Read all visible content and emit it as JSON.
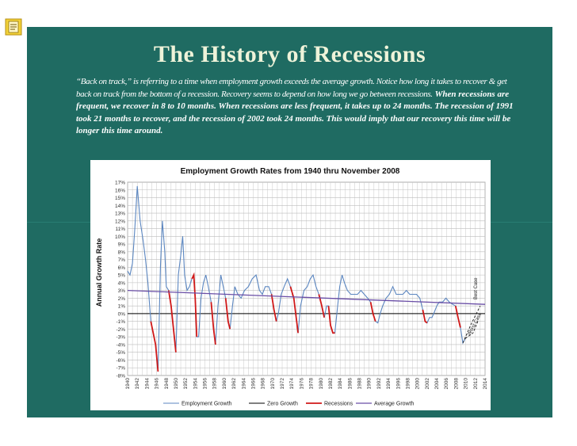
{
  "slide": {
    "title": "The History of Recessions",
    "paragraph_italic": "“Back on track,” is referring to a time when employment growth exceeds the average growth. Notice how long it takes to recover & get back on track from the bottom of a recession. Recovery seems to depend on how long we go between recessions.",
    "paragraph_bold": "When recessions are frequent, we recover in 8 to 10 months. When recessions are less frequent, it takes up to 24 months. The recession of 1991 took 21 months to recover, and the recession of 2002 took 24 months. This would imply that our recovery this time will be longer this time around."
  },
  "icons": {
    "note": "note-icon"
  },
  "chart_data": {
    "type": "line",
    "title": "Employment Growth Rates from 1940 thru November 2008",
    "xlabel": "",
    "ylabel": "Annual Growth Rate",
    "xlim": [
      1940,
      2014
    ],
    "ylim": [
      -8,
      17
    ],
    "y_ticks": [
      17,
      16,
      15,
      14,
      13,
      12,
      11,
      10,
      9,
      8,
      7,
      6,
      5,
      4,
      3,
      2,
      1,
      0,
      -1,
      -2,
      -3,
      -4,
      -5,
      -6,
      -7,
      -8
    ],
    "x_ticks": [
      1940,
      1942,
      1944,
      1946,
      1948,
      1950,
      1952,
      1954,
      1956,
      1958,
      1960,
      1962,
      1964,
      1966,
      1968,
      1970,
      1972,
      1974,
      1976,
      1978,
      1980,
      1982,
      1984,
      1986,
      1988,
      1990,
      1992,
      1994,
      1996,
      1998,
      2000,
      2002,
      2004,
      2006,
      2008,
      2010,
      2012,
      2014
    ],
    "colors": {
      "employment": "#5b86c0",
      "zero": "#000000",
      "recession": "#d01818",
      "average": "#6a4ea6",
      "forecast": "#1a1a1a"
    },
    "series": [
      {
        "name": "Employment Growth",
        "points": [
          [
            1940,
            5.5
          ],
          [
            1940.5,
            5
          ],
          [
            1941,
            6.5
          ],
          [
            1941.5,
            11
          ],
          [
            1942,
            16.5
          ],
          [
            1942.6,
            12
          ],
          [
            1943.2,
            9.5
          ],
          [
            1943.7,
            7
          ],
          [
            1944.2,
            4
          ],
          [
            1944.8,
            -1
          ],
          [
            1945.3,
            -2.5
          ],
          [
            1945.8,
            -4
          ],
          [
            1946.3,
            -7.5
          ],
          [
            1946.8,
            6
          ],
          [
            1947.2,
            12
          ],
          [
            1947.7,
            8
          ],
          [
            1948,
            3.5
          ],
          [
            1948.5,
            3
          ],
          [
            1949,
            1
          ],
          [
            1949.5,
            -2
          ],
          [
            1950,
            -5
          ],
          [
            1950.5,
            5
          ],
          [
            1951,
            7.5
          ],
          [
            1951.4,
            10
          ],
          [
            1951.8,
            5
          ],
          [
            1952.3,
            3
          ],
          [
            1952.8,
            3.5
          ],
          [
            1953.3,
            4.5
          ],
          [
            1953.7,
            5
          ],
          [
            1954,
            2
          ],
          [
            1954.3,
            -3
          ],
          [
            1954.7,
            -3
          ],
          [
            1955.2,
            2
          ],
          [
            1955.7,
            4
          ],
          [
            1956.2,
            5
          ],
          [
            1956.7,
            3.5
          ],
          [
            1957.3,
            1.5
          ],
          [
            1957.8,
            -2
          ],
          [
            1958.2,
            -4
          ],
          [
            1958.7,
            1
          ],
          [
            1959.3,
            5
          ],
          [
            1959.8,
            3.5
          ],
          [
            1960.3,
            2
          ],
          [
            1960.8,
            -1
          ],
          [
            1961.2,
            -2
          ],
          [
            1961.7,
            1
          ],
          [
            1962.2,
            3.5
          ],
          [
            1962.8,
            2.5
          ],
          [
            1963.5,
            2
          ],
          [
            1964.2,
            3
          ],
          [
            1965,
            3.5
          ],
          [
            1965.8,
            4.5
          ],
          [
            1966.6,
            5
          ],
          [
            1967.3,
            3
          ],
          [
            1967.9,
            2.5
          ],
          [
            1968.5,
            3.5
          ],
          [
            1969.2,
            3.5
          ],
          [
            1969.8,
            2.5
          ],
          [
            1970.3,
            0.5
          ],
          [
            1970.8,
            -1
          ],
          [
            1971.2,
            0
          ],
          [
            1971.8,
            2.5
          ],
          [
            1972.4,
            3.5
          ],
          [
            1973.1,
            4.5
          ],
          [
            1973.7,
            3.5
          ],
          [
            1974.4,
            2
          ],
          [
            1974.9,
            -0.5
          ],
          [
            1975.3,
            -2.5
          ],
          [
            1975.8,
            1
          ],
          [
            1976.5,
            3
          ],
          [
            1977.2,
            3.5
          ],
          [
            1977.8,
            4.5
          ],
          [
            1978.4,
            5
          ],
          [
            1979,
            3.5
          ],
          [
            1979.6,
            2.5
          ],
          [
            1980.2,
            1
          ],
          [
            1980.7,
            -0.5
          ],
          [
            1981.2,
            1
          ],
          [
            1981.6,
            1
          ],
          [
            1982,
            -1.5
          ],
          [
            1982.5,
            -2.5
          ],
          [
            1982.9,
            -2.5
          ],
          [
            1983.4,
            0.5
          ],
          [
            1983.9,
            3.5
          ],
          [
            1984.4,
            5
          ],
          [
            1984.9,
            4
          ],
          [
            1985.5,
            3
          ],
          [
            1986.2,
            2.5
          ],
          [
            1986.9,
            2.5
          ],
          [
            1987.6,
            2.5
          ],
          [
            1988.3,
            3
          ],
          [
            1989,
            2.5
          ],
          [
            1989.7,
            2
          ],
          [
            1990.3,
            1.5
          ],
          [
            1990.8,
            0
          ],
          [
            1991.3,
            -1
          ],
          [
            1991.8,
            -1.2
          ],
          [
            1992.3,
            0
          ],
          [
            1992.8,
            1
          ],
          [
            1993.5,
            2
          ],
          [
            1994.2,
            2.5
          ],
          [
            1994.9,
            3.5
          ],
          [
            1995.6,
            2.5
          ],
          [
            1996.3,
            2.5
          ],
          [
            1997,
            2.5
          ],
          [
            1997.7,
            3
          ],
          [
            1998.4,
            2.5
          ],
          [
            1999.1,
            2.5
          ],
          [
            1999.8,
            2.5
          ],
          [
            2000.5,
            2
          ],
          [
            2001.1,
            0.5
          ],
          [
            2001.6,
            -1
          ],
          [
            2002,
            -1.2
          ],
          [
            2002.5,
            -0.5
          ],
          [
            2003,
            -0.5
          ],
          [
            2003.5,
            0.2
          ],
          [
            2004,
            1
          ],
          [
            2004.5,
            1.5
          ],
          [
            2005.2,
            1.5
          ],
          [
            2005.9,
            2
          ],
          [
            2006.6,
            1.5
          ],
          [
            2007.3,
            1.2
          ],
          [
            2007.9,
            1
          ],
          [
            2008.4,
            -0.5
          ],
          [
            2008.9,
            -1.8
          ],
          [
            2009.4,
            -3.8
          ],
          [
            2009.9,
            -3.2
          ]
        ]
      },
      {
        "name": "Zero Growth",
        "value": 0
      },
      {
        "name": "Recessions",
        "segments": [
          [
            [
              1944.8,
              -1
            ],
            [
              1945.3,
              -2.5
            ],
            [
              1945.8,
              -4
            ],
            [
              1946.3,
              -7.5
            ]
          ],
          [
            [
              1948.5,
              3
            ],
            [
              1949,
              1
            ],
            [
              1949.5,
              -2
            ],
            [
              1950,
              -5
            ]
          ],
          [
            [
              1953.3,
              4.5
            ],
            [
              1953.7,
              5
            ],
            [
              1954,
              2
            ],
            [
              1954.3,
              -3
            ]
          ],
          [
            [
              1957.3,
              1.5
            ],
            [
              1957.8,
              -2
            ],
            [
              1958.2,
              -4
            ]
          ],
          [
            [
              1960.3,
              2
            ],
            [
              1960.8,
              -1
            ],
            [
              1961.2,
              -2
            ]
          ],
          [
            [
              1969.8,
              2.5
            ],
            [
              1970.3,
              0.5
            ],
            [
              1970.8,
              -1
            ]
          ],
          [
            [
              1973.7,
              3.5
            ],
            [
              1974.4,
              2
            ],
            [
              1974.9,
              -0.5
            ],
            [
              1975.3,
              -2.5
            ]
          ],
          [
            [
              1979.6,
              2.5
            ],
            [
              1980.2,
              1
            ],
            [
              1980.7,
              -0.5
            ]
          ],
          [
            [
              1981.6,
              1
            ],
            [
              1982,
              -1.5
            ],
            [
              1982.5,
              -2.5
            ],
            [
              1982.9,
              -2.5
            ]
          ],
          [
            [
              1990.3,
              1.5
            ],
            [
              1990.8,
              0
            ],
            [
              1991.3,
              -1
            ]
          ],
          [
            [
              2001.1,
              0.5
            ],
            [
              2001.6,
              -1
            ],
            [
              2002,
              -1.2
            ]
          ],
          [
            [
              2007.9,
              1
            ],
            [
              2008.4,
              -0.5
            ],
            [
              2008.9,
              -1.8
            ]
          ]
        ]
      },
      {
        "name": "Average Growth",
        "points": [
          [
            1940,
            3
          ],
          [
            2014,
            1.2
          ]
        ]
      }
    ],
    "forecast": [
      {
        "label": "Best Case",
        "points": [
          [
            2009.4,
            -3.8
          ],
          [
            2011,
            -1.5
          ],
          [
            2013,
            1
          ]
        ]
      },
      {
        "label": "Worst Case",
        "points": [
          [
            2009.9,
            -3.2
          ],
          [
            2011.5,
            -2.5
          ],
          [
            2012.5,
            -1
          ]
        ]
      }
    ],
    "legend": [
      "Employment Growth",
      "Zero Growth",
      "Recessions",
      "Average Growth"
    ]
  }
}
